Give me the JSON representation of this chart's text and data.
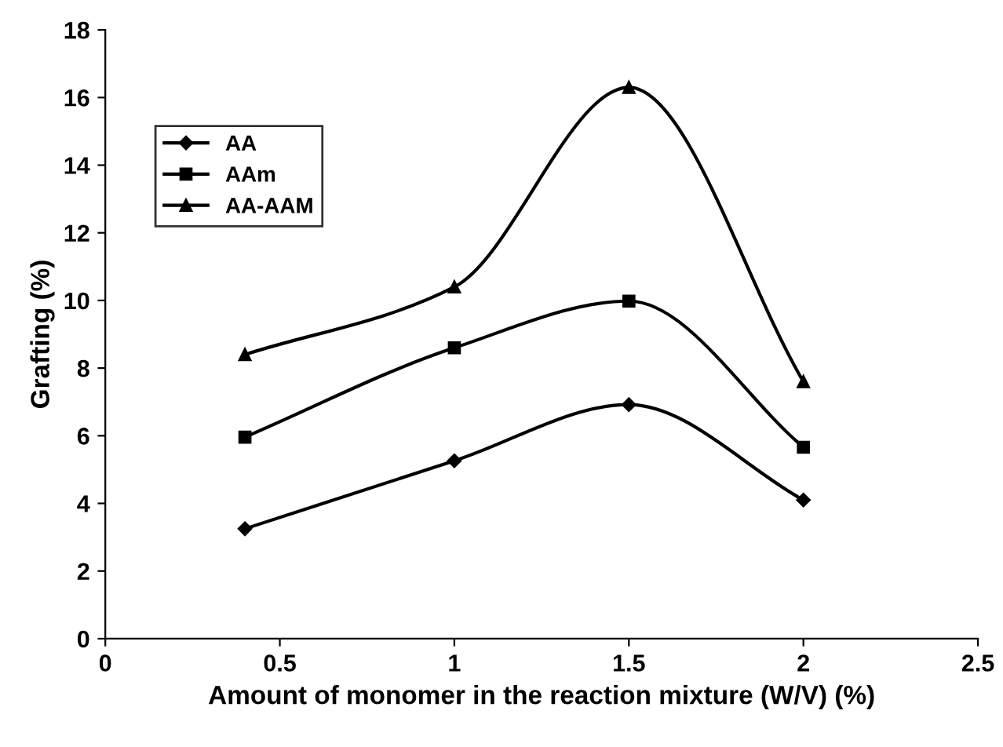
{
  "chart_data": {
    "type": "line",
    "xlabel": "Amount of monomer in the reaction mixture (W/V) (%)",
    "ylabel": "Grafting (%)",
    "x": [
      0.4,
      1,
      1.5,
      2
    ],
    "series": [
      {
        "name": "AA",
        "color": "#000000",
        "marker": "diamond",
        "values": [
          3.25,
          5.26,
          6.92,
          4.1
        ]
      },
      {
        "name": "AAm",
        "color": "#000000",
        "marker": "square",
        "values": [
          5.96,
          8.6,
          9.98,
          5.66
        ]
      },
      {
        "name": "AA-AAM",
        "color": "#000000",
        "marker": "triangle",
        "values": [
          8.4,
          10.4,
          16.3,
          7.6
        ]
      }
    ],
    "xlim": [
      0,
      2.5
    ],
    "xticks": [
      0,
      0.5,
      1,
      1.5,
      2,
      2.5
    ],
    "ylim": [
      0,
      18
    ],
    "yticks": [
      0,
      2,
      4,
      6,
      8,
      10,
      12,
      14,
      16,
      18
    ],
    "grid": false,
    "legend": "top left",
    "line_style": "solid"
  }
}
